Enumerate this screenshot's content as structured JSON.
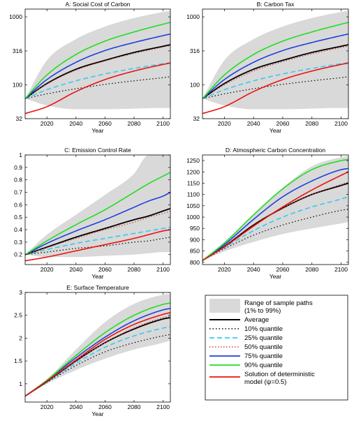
{
  "colors": {
    "band": "#d9d9d9",
    "average": "#000000",
    "q10": "#000000",
    "q25": "#33ccee",
    "q50": "#d23c3c",
    "q75": "#1f3fe0",
    "q90": "#22dd22",
    "deterministic": "#ee1111"
  },
  "legend": {
    "position": "bottom-right",
    "entries": [
      {
        "key": "band",
        "label1": "Range of sample paths",
        "label2": "(1% to 99%)"
      },
      {
        "key": "average",
        "label1": "Average",
        "label2": ""
      },
      {
        "key": "q10",
        "label1": "10% quantile",
        "label2": ""
      },
      {
        "key": "q25",
        "label1": "25% quantile",
        "label2": ""
      },
      {
        "key": "q50",
        "label1": "50% quantile",
        "label2": ""
      },
      {
        "key": "q75",
        "label1": "75% quantile",
        "label2": ""
      },
      {
        "key": "q90",
        "label1": "90% quantile",
        "label2": ""
      },
      {
        "key": "deterministic",
        "label1": "Solution of deterministic",
        "label2": "model (ψ=0.5)"
      }
    ]
  },
  "chart_data": [
    {
      "type": "line",
      "title": "A: Social Cost of Carbon",
      "xlabel": "Year",
      "ylabel": "",
      "xlim": [
        2005,
        2105
      ],
      "ylim": [
        32,
        1300
      ],
      "yscale": "log",
      "xticks": [
        2020,
        2040,
        2060,
        2080,
        2100
      ],
      "yticks": [
        32,
        100,
        316,
        1000
      ],
      "ytick_labels": [
        "32",
        "100",
        "316",
        "1000"
      ],
      "x": [
        2005,
        2020,
        2040,
        2060,
        2080,
        2100,
        2105
      ],
      "band_low": [
        63,
        50,
        44,
        44,
        45,
        46,
        46
      ],
      "band_high": [
        63,
        230,
        470,
        720,
        960,
        1180,
        1230
      ],
      "series": [
        {
          "key": "average",
          "values": [
            63,
            105,
            170,
            230,
            300,
            370,
            390
          ]
        },
        {
          "key": "q10",
          "values": [
            63,
            74,
            88,
            102,
            115,
            128,
            132
          ]
        },
        {
          "key": "q25",
          "values": [
            63,
            85,
            115,
            145,
            175,
            205,
            212
          ]
        },
        {
          "key": "q50",
          "values": [
            63,
            103,
            165,
            225,
            290,
            360,
            378
          ]
        },
        {
          "key": "q75",
          "values": [
            63,
            120,
            215,
            320,
            420,
            530,
            560
          ]
        },
        {
          "key": "q90",
          "values": [
            63,
            140,
            280,
            440,
            600,
            780,
            830
          ]
        },
        {
          "key": "deterministic",
          "values": [
            38,
            48,
            80,
            120,
            160,
            200,
            210
          ]
        }
      ]
    },
    {
      "type": "line",
      "title": "B: Carbon Tax",
      "xlabel": "Year",
      "ylabel": "",
      "xlim": [
        2005,
        2105
      ],
      "ylim": [
        32,
        1300
      ],
      "yscale": "log",
      "xticks": [
        2020,
        2040,
        2060,
        2080,
        2100
      ],
      "yticks": [
        32,
        100,
        316,
        1000
      ],
      "ytick_labels": [
        "32",
        "100",
        "316",
        "1000"
      ],
      "x": [
        2005,
        2020,
        2040,
        2060,
        2080,
        2100,
        2105
      ],
      "band_low": [
        63,
        50,
        44,
        44,
        45,
        46,
        46
      ],
      "band_high": [
        63,
        230,
        470,
        720,
        960,
        1180,
        1230
      ],
      "series": [
        {
          "key": "average",
          "values": [
            63,
            105,
            170,
            230,
            300,
            370,
            390
          ]
        },
        {
          "key": "q10",
          "values": [
            63,
            74,
            88,
            102,
            115,
            128,
            132
          ]
        },
        {
          "key": "q25",
          "values": [
            63,
            85,
            115,
            145,
            175,
            205,
            212
          ]
        },
        {
          "key": "q50",
          "values": [
            63,
            100,
            160,
            220,
            285,
            355,
            372
          ]
        },
        {
          "key": "q75",
          "values": [
            63,
            120,
            215,
            320,
            420,
            530,
            560
          ]
        },
        {
          "key": "q90",
          "values": [
            63,
            140,
            280,
            440,
            600,
            780,
            830
          ]
        },
        {
          "key": "deterministic",
          "values": [
            38,
            48,
            80,
            120,
            160,
            200,
            210
          ]
        }
      ]
    },
    {
      "type": "line",
      "title": "C: Emission Control Rate",
      "xlabel": "Year",
      "ylabel": "",
      "xlim": [
        2005,
        2105
      ],
      "ylim": [
        0.12,
        1.0
      ],
      "yscale": "linear",
      "xticks": [
        2020,
        2040,
        2060,
        2080,
        2100
      ],
      "yticks": [
        0.2,
        0.3,
        0.4,
        0.5,
        0.6,
        0.7,
        0.8,
        0.9,
        1
      ],
      "ytick_labels": [
        "0.2",
        "0.3",
        "0.4",
        "0.5",
        "0.6",
        "0.7",
        "0.8",
        "0.9",
        "1"
      ],
      "x": [
        2005,
        2020,
        2040,
        2060,
        2080,
        2090,
        2100,
        2105
      ],
      "band_low": [
        0.2,
        0.18,
        0.18,
        0.19,
        0.2,
        0.21,
        0.22,
        0.22
      ],
      "band_high": [
        0.2,
        0.36,
        0.52,
        0.68,
        0.85,
        1.0,
        1.0,
        1.0
      ],
      "series": [
        {
          "key": "average",
          "values": [
            0.2,
            0.26,
            0.34,
            0.41,
            0.48,
            0.51,
            0.55,
            0.57
          ]
        },
        {
          "key": "q10",
          "values": [
            0.2,
            0.22,
            0.25,
            0.27,
            0.3,
            0.31,
            0.33,
            0.34
          ]
        },
        {
          "key": "q25",
          "values": [
            0.2,
            0.24,
            0.29,
            0.33,
            0.37,
            0.39,
            0.41,
            0.42
          ]
        },
        {
          "key": "q50",
          "values": [
            0.2,
            0.255,
            0.33,
            0.4,
            0.46,
            0.5,
            0.53,
            0.55
          ]
        },
        {
          "key": "q75",
          "values": [
            0.2,
            0.29,
            0.39,
            0.48,
            0.58,
            0.63,
            0.67,
            0.7
          ]
        },
        {
          "key": "q90",
          "values": [
            0.2,
            0.31,
            0.44,
            0.56,
            0.7,
            0.77,
            0.83,
            0.86
          ]
        },
        {
          "key": "deterministic",
          "values": [
            0.15,
            0.18,
            0.23,
            0.28,
            0.33,
            0.36,
            0.39,
            0.4
          ]
        }
      ]
    },
    {
      "type": "line",
      "title": "D: Atmospheric Carbon Concentration",
      "xlabel": "Year",
      "ylabel": "",
      "xlim": [
        2005,
        2105
      ],
      "ylim": [
        790,
        1275
      ],
      "yscale": "linear",
      "xticks": [
        2020,
        2040,
        2060,
        2080,
        2100
      ],
      "yticks": [
        800,
        850,
        900,
        950,
        1000,
        1050,
        1100,
        1150,
        1200,
        1250
      ],
      "ytick_labels": [
        "800",
        "850",
        "900",
        "950",
        "1000",
        "1050",
        "1100",
        "1150",
        "1200",
        "1250"
      ],
      "x": [
        2005,
        2020,
        2040,
        2060,
        2080,
        2100,
        2105
      ],
      "band_low": [
        808,
        848,
        890,
        925,
        950,
        972,
        978
      ],
      "band_high": [
        808,
        890,
        1010,
        1130,
        1225,
        1265,
        1270
      ],
      "series": [
        {
          "key": "average",
          "values": [
            808,
            870,
            965,
            1040,
            1100,
            1140,
            1150
          ]
        },
        {
          "key": "q10",
          "values": [
            808,
            860,
            920,
            965,
            1000,
            1030,
            1035
          ]
        },
        {
          "key": "q25",
          "values": [
            808,
            865,
            940,
            1000,
            1045,
            1080,
            1090
          ]
        },
        {
          "key": "q50",
          "values": [
            808,
            870,
            962,
            1040,
            1100,
            1145,
            1155
          ]
        },
        {
          "key": "q75",
          "values": [
            808,
            878,
            990,
            1090,
            1160,
            1210,
            1215
          ]
        },
        {
          "key": "q90",
          "values": [
            808,
            885,
            1010,
            1125,
            1210,
            1250,
            1255
          ]
        },
        {
          "key": "deterministic",
          "values": [
            808,
            868,
            960,
            1045,
            1120,
            1185,
            1200
          ]
        }
      ]
    },
    {
      "type": "line",
      "title": "E: Surface Temperature",
      "xlabel": "Year",
      "ylabel": "",
      "xlim": [
        2005,
        2105
      ],
      "ylim": [
        0.6,
        3.0
      ],
      "yscale": "linear",
      "xticks": [
        2020,
        2040,
        2060,
        2080,
        2100
      ],
      "yticks": [
        1,
        1.5,
        2,
        2.5,
        3
      ],
      "ytick_labels": [
        "1",
        "1.5",
        "2",
        "2.5",
        "3"
      ],
      "x": [
        2005,
        2020,
        2040,
        2060,
        2080,
        2100,
        2105
      ],
      "band_low": [
        0.73,
        1.0,
        1.3,
        1.55,
        1.75,
        1.9,
        1.95
      ],
      "band_high": [
        0.73,
        1.1,
        1.75,
        2.35,
        2.75,
        2.95,
        2.97
      ],
      "series": [
        {
          "key": "average",
          "values": [
            0.73,
            1.05,
            1.5,
            1.9,
            2.2,
            2.42,
            2.45
          ]
        },
        {
          "key": "q10",
          "values": [
            0.73,
            1.03,
            1.4,
            1.7,
            1.9,
            2.05,
            2.08
          ]
        },
        {
          "key": "q25",
          "values": [
            0.73,
            1.04,
            1.45,
            1.8,
            2.05,
            2.22,
            2.25
          ]
        },
        {
          "key": "q50",
          "values": [
            0.73,
            1.05,
            1.5,
            1.9,
            2.22,
            2.45,
            2.48
          ]
        },
        {
          "key": "q75",
          "values": [
            0.73,
            1.07,
            1.57,
            2.02,
            2.38,
            2.62,
            2.65
          ]
        },
        {
          "key": "q90",
          "values": [
            0.73,
            1.08,
            1.62,
            2.12,
            2.5,
            2.74,
            2.77
          ]
        },
        {
          "key": "deterministic",
          "values": [
            0.73,
            1.06,
            1.52,
            1.97,
            2.3,
            2.52,
            2.56
          ]
        }
      ]
    }
  ]
}
